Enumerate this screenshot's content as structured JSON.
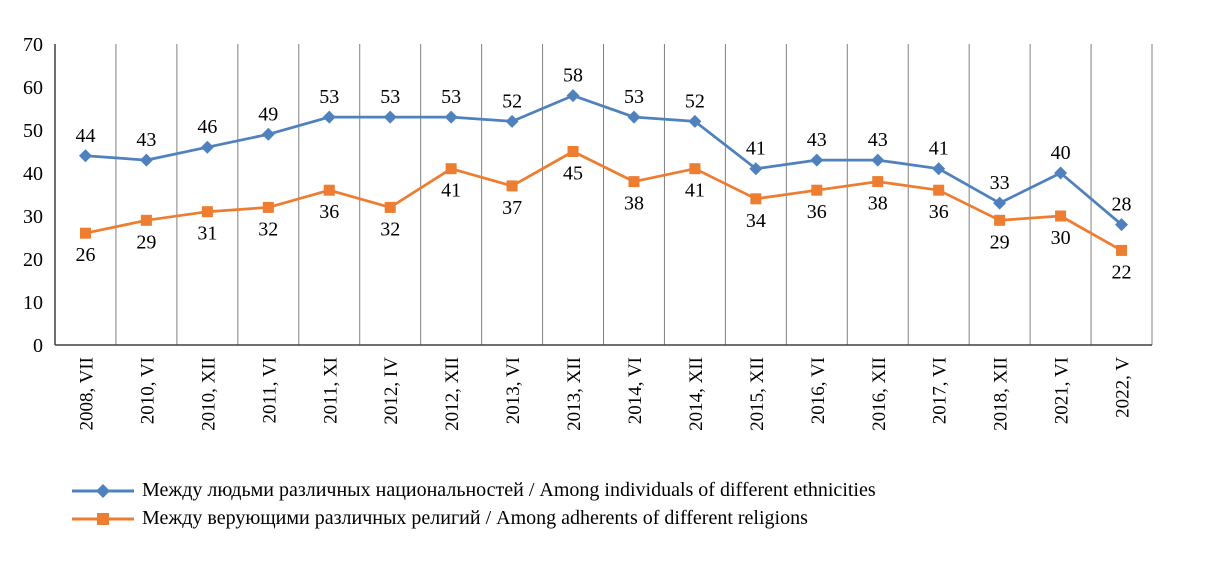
{
  "chart_data": {
    "type": "line",
    "categories": [
      "2008, VII",
      "2010, VI",
      "2010, XII",
      "2011, VI",
      "2011, XI",
      "2012, IV",
      "2012, XII",
      "2013, VI",
      "2013, XII",
      "2014, VI",
      "2014, XII",
      "2015, XII",
      "2016, VI",
      "2016, XII",
      "2017, VI",
      "2018, XII",
      "2021, VI",
      "2022, V"
    ],
    "series": [
      {
        "name": "Между людьми различных национальностей / Among individuals of different ethnicities",
        "color": "#4E81BD",
        "marker": "diamond",
        "label_position": "above",
        "values": [
          44,
          43,
          46,
          49,
          53,
          53,
          53,
          52,
          58,
          53,
          52,
          41,
          43,
          43,
          41,
          33,
          40,
          28
        ]
      },
      {
        "name": "Между верующими различных религий / Among adherents of different religions",
        "color": "#ED7D31",
        "marker": "square",
        "label_position": "below",
        "values": [
          26,
          29,
          31,
          32,
          36,
          32,
          41,
          37,
          45,
          38,
          41,
          34,
          36,
          38,
          36,
          29,
          30,
          22
        ]
      }
    ],
    "ylim": [
      0,
      70
    ],
    "ytick_step": 10,
    "yticks": [
      "0",
      "10",
      "20",
      "30",
      "40",
      "50",
      "60",
      "70"
    ],
    "grid": "vertical",
    "legend_position": "bottom-left",
    "colors": {
      "gridline": "#808080",
      "axis": "#404040",
      "text": "#000000"
    }
  }
}
